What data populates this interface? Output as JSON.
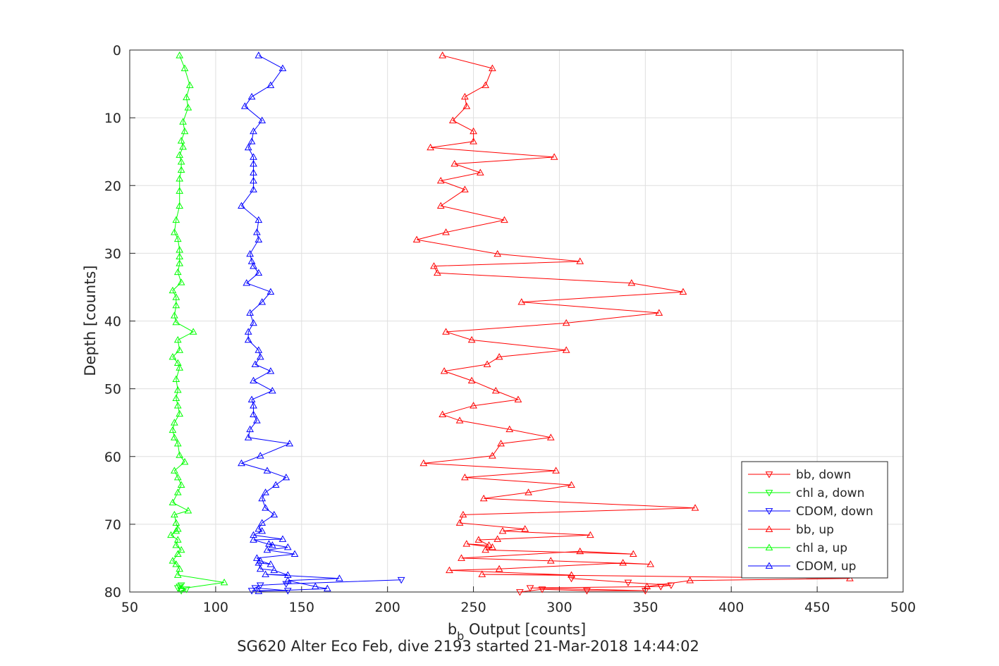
{
  "chart_data": {
    "type": "line",
    "xlabel_main": "b",
    "xlabel_sub": "b",
    "xlabel_rest": " Output [counts]",
    "ylabel": "Depth [counts]",
    "caption": "SG620 Alter Eco Feb, dive 2193 started 21-Mar-2018 14:44:02",
    "xlim": [
      50,
      500
    ],
    "ylim": [
      0,
      80
    ],
    "y_reversed": true,
    "grid": true,
    "legend_position": "bottom-right",
    "x_ticks": [
      "50",
      "100",
      "150",
      "200",
      "250",
      "300",
      "350",
      "400",
      "450",
      "500"
    ],
    "y_ticks": [
      "0",
      "10",
      "20",
      "30",
      "40",
      "50",
      "60",
      "70",
      "80"
    ],
    "series": [
      {
        "name": "bb, down",
        "color": "#ff0000",
        "marker": "triangle-down",
        "points": [
          [
            277,
            80.0
          ],
          [
            290,
            79.6
          ],
          [
            316,
            79.8
          ],
          [
            350,
            79.8
          ],
          [
            283,
            79.4
          ],
          [
            359,
            79.2
          ],
          [
            365,
            79.0
          ],
          [
            340,
            78.6
          ],
          [
            307,
            78.0
          ]
        ]
      },
      {
        "name": "chl a, down",
        "color": "#00ff00",
        "marker": "triangle-down",
        "points": [
          [
            80,
            79.8
          ],
          [
            83,
            79.6
          ],
          [
            78,
            79.4
          ],
          [
            79,
            79.2
          ],
          [
            80,
            79.0
          ]
        ]
      },
      {
        "name": "CDOM, down",
        "color": "#0000ff",
        "marker": "triangle-down",
        "points": [
          [
            121,
            79.8
          ],
          [
            142,
            79.8
          ],
          [
            123,
            79.4
          ],
          [
            126,
            79.0
          ],
          [
            141,
            78.8
          ],
          [
            208,
            78.2
          ]
        ]
      },
      {
        "name": "bb, up",
        "color": "#ff0000",
        "marker": "triangle-up",
        "points": [
          [
            232,
            0.8
          ],
          [
            261,
            2.7
          ],
          [
            257,
            5.2
          ],
          [
            245,
            6.9
          ],
          [
            246,
            8.3
          ],
          [
            238,
            10.4
          ],
          [
            250,
            12.0
          ],
          [
            250,
            13.5
          ],
          [
            225,
            14.4
          ],
          [
            297,
            15.8
          ],
          [
            239,
            16.8
          ],
          [
            254,
            18.1
          ],
          [
            231,
            19.3
          ],
          [
            245,
            20.6
          ],
          [
            231,
            23.0
          ],
          [
            268,
            25.1
          ],
          [
            234,
            26.9
          ],
          [
            217,
            28.0
          ],
          [
            264,
            30.1
          ],
          [
            312,
            31.2
          ],
          [
            227,
            31.9
          ],
          [
            229,
            32.9
          ],
          [
            342,
            34.4
          ],
          [
            372,
            35.7
          ],
          [
            278,
            37.2
          ],
          [
            358,
            38.8
          ],
          [
            304,
            40.3
          ],
          [
            234,
            41.6
          ],
          [
            249,
            42.8
          ],
          [
            304,
            44.3
          ],
          [
            265,
            45.3
          ],
          [
            258,
            46.4
          ],
          [
            233,
            47.4
          ],
          [
            249,
            48.8
          ],
          [
            263,
            50.3
          ],
          [
            276,
            51.6
          ],
          [
            250,
            52.5
          ],
          [
            232,
            53.8
          ],
          [
            242,
            54.7
          ],
          [
            271,
            56.0
          ],
          [
            295,
            57.2
          ],
          [
            266,
            58.1
          ],
          [
            261,
            59.9
          ],
          [
            221,
            61.0
          ],
          [
            298,
            62.1
          ],
          [
            245,
            63.1
          ],
          [
            307,
            64.2
          ],
          [
            282,
            65.3
          ],
          [
            256,
            66.2
          ],
          [
            379,
            67.6
          ],
          [
            244,
            68.6
          ],
          [
            242,
            69.8
          ],
          [
            280,
            70.7
          ],
          [
            267,
            71.0
          ],
          [
            318,
            71.6
          ],
          [
            264,
            72.2
          ],
          [
            253,
            72.3
          ],
          [
            259,
            73.1
          ],
          [
            246,
            72.9
          ],
          [
            261,
            73.4
          ],
          [
            257,
            73.8
          ],
          [
            343,
            74.4
          ],
          [
            312,
            74.0
          ],
          [
            243,
            75.0
          ],
          [
            295,
            75.4
          ],
          [
            353,
            75.9
          ],
          [
            337,
            75.7
          ],
          [
            265,
            76.6
          ],
          [
            236,
            76.8
          ],
          [
            307,
            77.5
          ],
          [
            255,
            77.4
          ],
          [
            469,
            78.0
          ],
          [
            376,
            78.3
          ],
          [
            351,
            79.2
          ]
        ]
      },
      {
        "name": "chl a, up",
        "color": "#00ff00",
        "marker": "triangle-up",
        "points": [
          [
            79,
            0.8
          ],
          [
            82,
            2.7
          ],
          [
            85,
            5.2
          ],
          [
            83,
            7.0
          ],
          [
            84,
            8.5
          ],
          [
            81,
            10.6
          ],
          [
            82,
            12.0
          ],
          [
            80,
            13.4
          ],
          [
            81,
            14.3
          ],
          [
            79,
            15.5
          ],
          [
            80,
            16.5
          ],
          [
            80,
            17.7
          ],
          [
            79,
            19.0
          ],
          [
            79,
            20.8
          ],
          [
            79,
            23.0
          ],
          [
            77,
            25.1
          ],
          [
            76,
            26.9
          ],
          [
            78,
            27.9
          ],
          [
            79,
            29.5
          ],
          [
            79,
            30.5
          ],
          [
            79,
            31.5
          ],
          [
            78,
            32.8
          ],
          [
            80,
            34.3
          ],
          [
            75,
            35.5
          ],
          [
            77,
            36.5
          ],
          [
            77,
            37.7
          ],
          [
            76,
            39.2
          ],
          [
            77,
            40.2
          ],
          [
            87,
            41.6
          ],
          [
            78,
            42.8
          ],
          [
            79,
            44.3
          ],
          [
            75,
            45.3
          ],
          [
            78,
            46.2
          ],
          [
            79,
            46.9
          ],
          [
            77,
            48.6
          ],
          [
            78,
            50.2
          ],
          [
            77,
            51.4
          ],
          [
            78,
            52.5
          ],
          [
            79,
            53.7
          ],
          [
            76,
            55.0
          ],
          [
            75,
            56.1
          ],
          [
            76,
            57.2
          ],
          [
            78,
            58.1
          ],
          [
            79,
            59.8
          ],
          [
            82,
            60.8
          ],
          [
            76,
            62.1
          ],
          [
            78,
            63.1
          ],
          [
            80,
            64.2
          ],
          [
            78,
            65.3
          ],
          [
            75,
            66.8
          ],
          [
            84,
            68.0
          ],
          [
            76,
            68.6
          ],
          [
            77,
            69.8
          ],
          [
            78,
            70.7
          ],
          [
            77,
            71.0
          ],
          [
            74,
            71.6
          ],
          [
            78,
            72.3
          ],
          [
            77,
            73.1
          ],
          [
            80,
            73.8
          ],
          [
            78,
            74.4
          ],
          [
            75,
            75.4
          ],
          [
            77,
            75.9
          ],
          [
            79,
            76.6
          ],
          [
            78,
            77.5
          ],
          [
            105,
            78.6
          ],
          [
            80,
            79.5
          ]
        ]
      },
      {
        "name": "CDOM, up",
        "color": "#0000ff",
        "marker": "triangle-up",
        "points": [
          [
            125,
            0.8
          ],
          [
            139,
            2.7
          ],
          [
            132,
            5.2
          ],
          [
            121,
            6.9
          ],
          [
            117,
            8.3
          ],
          [
            127,
            10.4
          ],
          [
            122,
            12.0
          ],
          [
            121,
            13.5
          ],
          [
            119,
            14.4
          ],
          [
            122,
            15.8
          ],
          [
            122,
            16.8
          ],
          [
            122,
            18.1
          ],
          [
            122,
            19.3
          ],
          [
            122,
            20.6
          ],
          [
            115,
            23.0
          ],
          [
            125,
            25.1
          ],
          [
            124,
            26.9
          ],
          [
            125,
            28.0
          ],
          [
            120,
            30.1
          ],
          [
            121,
            31.2
          ],
          [
            122,
            31.9
          ],
          [
            125,
            32.9
          ],
          [
            118,
            34.4
          ],
          [
            132,
            35.7
          ],
          [
            127,
            37.2
          ],
          [
            120,
            38.8
          ],
          [
            122,
            40.3
          ],
          [
            119,
            41.6
          ],
          [
            119,
            42.8
          ],
          [
            125,
            44.3
          ],
          [
            126,
            45.3
          ],
          [
            123,
            46.4
          ],
          [
            132,
            47.4
          ],
          [
            122,
            48.8
          ],
          [
            133,
            50.3
          ],
          [
            121,
            51.6
          ],
          [
            122,
            52.5
          ],
          [
            122,
            53.8
          ],
          [
            124,
            54.7
          ],
          [
            120,
            56.0
          ],
          [
            119,
            57.2
          ],
          [
            143,
            58.1
          ],
          [
            126,
            59.9
          ],
          [
            115,
            61.0
          ],
          [
            130,
            62.1
          ],
          [
            141,
            63.1
          ],
          [
            135,
            64.2
          ],
          [
            129,
            65.3
          ],
          [
            127,
            66.2
          ],
          [
            129,
            67.6
          ],
          [
            134,
            68.6
          ],
          [
            127,
            69.8
          ],
          [
            125,
            70.7
          ],
          [
            127,
            71.0
          ],
          [
            122,
            71.6
          ],
          [
            139,
            72.2
          ],
          [
            122,
            72.3
          ],
          [
            133,
            73.1
          ],
          [
            131,
            72.9
          ],
          [
            142,
            73.4
          ],
          [
            130,
            73.8
          ],
          [
            146,
            74.4
          ],
          [
            124,
            75.0
          ],
          [
            126,
            75.4
          ],
          [
            132,
            75.9
          ],
          [
            125,
            75.7
          ],
          [
            126,
            76.6
          ],
          [
            134,
            76.8
          ],
          [
            142,
            77.5
          ],
          [
            129,
            77.4
          ],
          [
            172,
            78.0
          ],
          [
            142,
            78.3
          ],
          [
            158,
            79.2
          ],
          [
            165,
            79.5
          ],
          [
            125,
            79.9
          ]
        ]
      }
    ]
  }
}
